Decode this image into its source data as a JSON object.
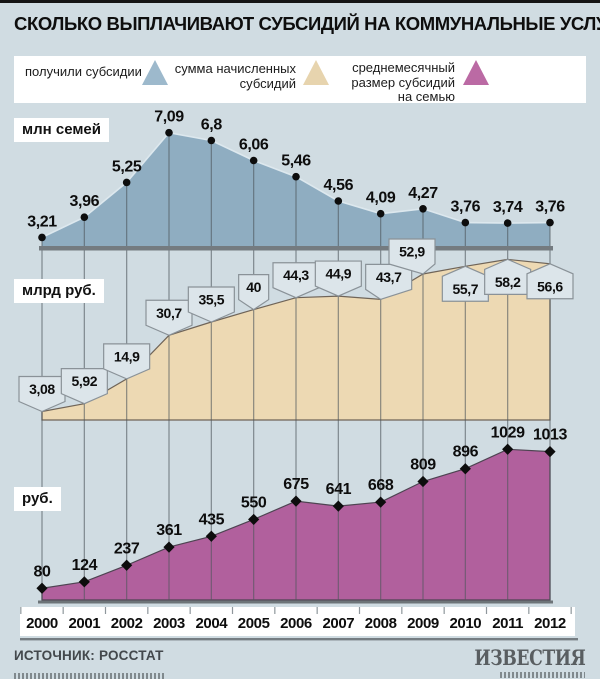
{
  "header": {
    "title": "СКОЛЬКО ВЫПЛАЧИВАЮТ СУБСИДИЙ НА КОММУНАЛЬНЫЕ УСЛУГИ"
  },
  "legend": {
    "items": [
      {
        "label": "получили субсидии",
        "color": "#9db9cc"
      },
      {
        "label": "сумма начисленных\nсубсидий",
        "color": "#e7d4ae"
      },
      {
        "label": "среднемесячный\nразмер субсидий\nна семью",
        "color": "#bb6aa4"
      }
    ]
  },
  "chart_data": {
    "type": "area",
    "title": "СКОЛЬКО ВЫПЛАЧИВАЮТ СУБСИДИЙ НА КОММУНАЛЬНЫЕ УСЛУГИ",
    "categories": [
      "2000",
      "2001",
      "2002",
      "2003",
      "2004",
      "2005",
      "2006",
      "2007",
      "2008",
      "2009",
      "2010",
      "2011",
      "2012"
    ],
    "legend_position": "top",
    "grid": "vertical-per-year",
    "series": [
      {
        "name": "получили субсидии",
        "unit": "млн семей",
        "marker": "circle",
        "color": "#8fadc1",
        "values": [
          3.21,
          3.96,
          5.25,
          7.09,
          6.8,
          6.06,
          5.46,
          4.56,
          4.09,
          4.27,
          3.76,
          3.74,
          3.76
        ],
        "labels": [
          "3,21",
          "3,96",
          "5,25",
          "7,09",
          "6,8",
          "6,06",
          "5,46",
          "4,56",
          "4,09",
          "4,27",
          "3,76",
          "3,74",
          "3,76"
        ]
      },
      {
        "name": "сумма начисленных субсидий",
        "unit": "млрд руб.",
        "marker": "callout",
        "color": "#edd9b3",
        "values": [
          3.08,
          5.92,
          14.9,
          30.7,
          35.5,
          40,
          44.3,
          44.9,
          43.7,
          52.9,
          55.7,
          58.2,
          56.6
        ],
        "labels": [
          "3,08",
          "5,92",
          "14,9",
          "30,7",
          "35,5",
          "40",
          "44,3",
          "44,9",
          "43,7",
          "52,9",
          "55,7",
          "58,2",
          "56,6"
        ]
      },
      {
        "name": "среднемесячный размер субсидий на семью",
        "unit": "руб.",
        "marker": "diamond",
        "color": "#b1609d",
        "values": [
          80,
          124,
          237,
          361,
          435,
          550,
          675,
          641,
          668,
          809,
          896,
          1029,
          1013
        ],
        "labels": [
          "80",
          "124",
          "237",
          "361",
          "435",
          "550",
          "675",
          "641",
          "668",
          "809",
          "896",
          "1029",
          "1013"
        ]
      }
    ]
  },
  "styles": {
    "background": "#d0dce2",
    "gridline": "#4e565b",
    "callout_fill": "#dce5ea",
    "callout_stroke": "#8a9298",
    "axis_bar": "#747b80",
    "marker_color": "#0d0d0d"
  },
  "footer": {
    "source": "ИСТОЧНИК: РОССТАТ",
    "brand": "ИЗВЕСТИЯ"
  }
}
